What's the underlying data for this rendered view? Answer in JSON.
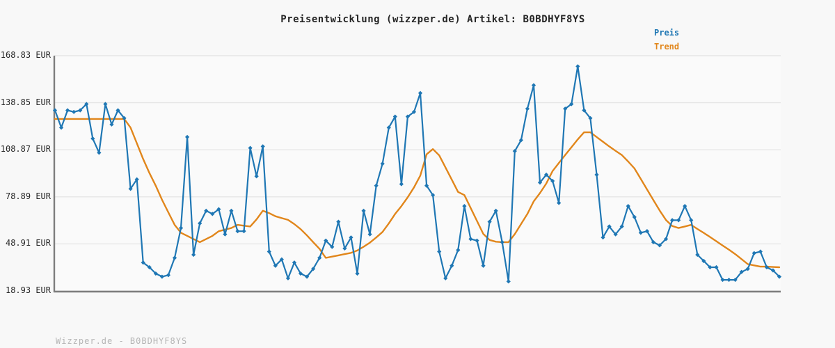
{
  "title": "Preisentwicklung (wizzper.de) Artikel: B0BDHYF8YS",
  "legend": {
    "preis_label": "Preis",
    "trend_label": "Trend"
  },
  "watermark": "Wizzper.de - B0BDHYF8YS",
  "colors": {
    "price_line": "#1f77b4",
    "trend_line": "#e1861b",
    "grid": "#e5e5e5",
    "spine": "#7d7d7d",
    "page_bg": "#f8f8f8",
    "plot_bg": "#fafafa",
    "text": "#262626",
    "watermark_text": "#b5b5b5"
  },
  "chart_data": {
    "type": "line",
    "title": "Preisentwicklung (wizzper.de) Artikel: B0BDHYF8YS",
    "xlabel": "",
    "ylabel": "",
    "grid": "horizontal only",
    "legend_position": "top-right, outside plot",
    "x_tick_labels": "none (time axis unlabeled)",
    "ylim": [
      18.93,
      168.83
    ],
    "y_ticks": [
      {
        "label": "168.83 EUR",
        "value": 168.83
      },
      {
        "label": "138.85 EUR",
        "value": 138.85
      },
      {
        "label": "108.87 EUR",
        "value": 108.87
      },
      {
        "label": "78.89 EUR",
        "value": 78.89
      },
      {
        "label": "48.91 EUR",
        "value": 48.91
      },
      {
        "label": "18.93 EUR",
        "value": 18.93
      }
    ],
    "unit": "EUR",
    "series": [
      {
        "name": "Preis",
        "color": "#1f77b4",
        "marker": "diamond",
        "values": [
          134,
          123,
          134,
          133,
          134,
          138,
          116,
          107,
          138,
          125,
          134,
          129,
          84,
          90,
          37,
          34,
          30,
          28,
          29,
          40,
          59,
          117,
          42,
          62,
          70,
          68,
          71,
          55,
          70,
          57,
          57,
          110,
          92,
          111,
          44,
          35,
          39,
          27,
          37,
          30,
          28,
          33,
          40,
          51,
          47,
          63,
          46,
          53,
          30,
          70,
          55,
          86,
          100,
          123,
          130,
          87,
          130,
          133,
          145,
          86,
          80,
          44,
          27,
          35,
          45,
          73,
          52,
          51,
          35,
          63,
          70,
          50,
          25,
          108,
          115,
          135,
          150,
          88,
          93,
          89,
          75,
          135,
          138,
          162,
          134,
          129,
          93,
          53,
          60,
          55,
          60,
          73,
          66,
          56,
          57,
          50,
          48,
          52,
          64,
          64,
          73,
          64,
          42,
          38,
          34,
          34,
          26,
          26,
          26,
          31,
          33,
          43,
          44,
          34,
          32,
          28
        ]
      },
      {
        "name": "Trend",
        "color": "#e1861b",
        "marker": "none",
        "values": [
          128.5,
          128.5,
          128.5,
          128.5,
          128.5,
          128.5,
          128.5,
          128.5,
          128.5,
          128.5,
          128.5,
          128.5,
          123,
          113,
          103,
          94,
          86,
          77,
          69,
          61,
          56,
          54,
          52,
          50,
          52,
          54,
          57,
          58,
          59,
          61,
          60.5,
          60,
          64.5,
          70,
          68.5,
          66.5,
          65.3,
          64.2,
          61.5,
          58.3,
          54.3,
          50,
          45.7,
          40,
          40.8,
          41.6,
          42.4,
          43.2,
          44.7,
          47.1,
          49.7,
          53,
          56.5,
          62,
          68,
          73,
          78.6,
          84.9,
          92.4,
          106,
          109.3,
          105.3,
          97.6,
          89.8,
          82,
          80,
          71.8,
          63.5,
          55.3,
          51.4,
          50.3,
          50,
          50,
          55.1,
          61.6,
          68,
          76,
          81.3,
          87.4,
          95.3,
          100.5,
          105.5,
          110.5,
          115.5,
          120,
          120,
          117,
          114,
          111,
          108.2,
          105.5,
          101.4,
          97,
          90.3,
          83.6,
          76.8,
          70.2,
          64.1,
          60.3,
          59,
          60,
          61,
          58.4,
          55.9,
          53.3,
          50.6,
          47.9,
          45.2,
          42.4,
          39.2,
          36,
          35.2,
          34.4,
          34.4,
          34.2,
          34
        ]
      }
    ]
  }
}
